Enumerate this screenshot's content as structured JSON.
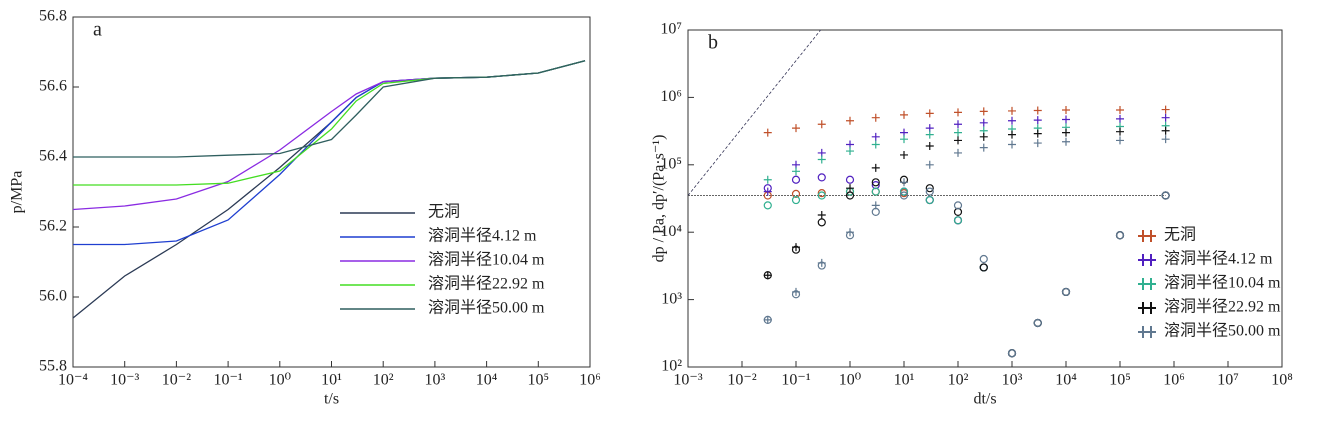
{
  "chart_data": [
    {
      "type": "line",
      "label": "a",
      "xlabel": "t/s",
      "ylabel": "p/MPa",
      "xscale": "linear-log",
      "x": [
        0.0001,
        0.001,
        0.01,
        0.1,
        1,
        10,
        30,
        100,
        1000,
        10000,
        100000,
        800000
      ],
      "xlim": [
        0.0001,
        1000000
      ],
      "ylim": [
        55.8,
        56.8
      ],
      "xticks": [
        {
          "value": 0.0001,
          "label": "10⁻⁴"
        },
        {
          "value": 0.001,
          "label": "10⁻³"
        },
        {
          "value": 0.01,
          "label": "10⁻²"
        },
        {
          "value": 0.1,
          "label": "10⁻¹"
        },
        {
          "value": 1,
          "label": "10⁰"
        },
        {
          "value": 10,
          "label": "10¹"
        },
        {
          "value": 100,
          "label": "10²"
        },
        {
          "value": 1000,
          "label": "10³"
        },
        {
          "value": 10000,
          "label": "10⁴"
        },
        {
          "value": 100000,
          "label": "10⁵"
        },
        {
          "value": 1000000,
          "label": "10⁶"
        }
      ],
      "yticks": [
        55.8,
        {
          "value": 56,
          "label": "56.0"
        },
        56.2,
        56.4,
        56.6,
        56.8
      ],
      "series": [
        {
          "name": "无洞",
          "color": "#2b3a55",
          "values": [
            55.94,
            56.06,
            56.15,
            56.25,
            56.37,
            56.5,
            56.57,
            56.615,
            56.625,
            56.628,
            56.64,
            56.675
          ]
        },
        {
          "name": "溶洞半径4.12 m",
          "color": "#1f3fd0",
          "values": [
            56.15,
            56.15,
            56.16,
            56.22,
            56.35,
            56.5,
            56.57,
            56.615,
            56.625,
            56.628,
            56.64,
            56.675
          ]
        },
        {
          "name": "溶洞半径10.04 m",
          "color": "#8a2be2",
          "values": [
            56.25,
            56.26,
            56.28,
            56.33,
            56.42,
            56.53,
            56.58,
            56.615,
            56.625,
            56.628,
            56.64,
            56.675
          ]
        },
        {
          "name": "溶洞半径22.92 m",
          "color": "#44dd22",
          "values": [
            56.32,
            56.32,
            56.32,
            56.325,
            56.36,
            56.48,
            56.56,
            56.61,
            56.625,
            56.628,
            56.64,
            56.675
          ]
        },
        {
          "name": "溶洞半径50.00 m",
          "color": "#2f5f5f",
          "values": [
            56.4,
            56.4,
            56.4,
            56.405,
            56.41,
            56.45,
            56.52,
            56.6,
            56.625,
            56.628,
            56.64,
            56.675
          ]
        }
      ]
    },
    {
      "type": "scatter",
      "label": "b",
      "xlabel": "dt/s",
      "ylabel": "dp / Pa, dp′/(Pa·s⁻¹)",
      "xscale": "log",
      "yscale": "log",
      "hline": 35000,
      "x": [
        0.03,
        0.1,
        0.3,
        1,
        3,
        10,
        30,
        100,
        300,
        1000,
        3000,
        10000,
        100000,
        700000
      ],
      "xlim": [
        0.001,
        100000000
      ],
      "ylim": [
        100,
        10000000
      ],
      "xticks": [
        {
          "value": 0.001,
          "label": "10⁻³"
        },
        {
          "value": 0.01,
          "label": "10⁻²"
        },
        {
          "value": 0.1,
          "label": "10⁻¹"
        },
        {
          "value": 1,
          "label": "10⁰"
        },
        {
          "value": 10,
          "label": "10¹"
        },
        {
          "value": 100,
          "label": "10²"
        },
        {
          "value": 1000,
          "label": "10³"
        },
        {
          "value": 10000,
          "label": "10⁴"
        },
        {
          "value": 100000,
          "label": "10⁵"
        },
        {
          "value": 1000000,
          "label": "10⁶"
        },
        {
          "value": 10000000,
          "label": "10⁷"
        },
        {
          "value": 100000000,
          "label": "10⁸"
        }
      ],
      "yticks": [
        {
          "value": 100,
          "label": "10²"
        },
        {
          "value": 1000,
          "label": "10³"
        },
        {
          "value": 10000,
          "label": "10⁴"
        },
        {
          "value": 100000,
          "label": "10⁵"
        },
        {
          "value": 1000000,
          "label": "10⁶"
        },
        {
          "value": 10000000,
          "label": "10⁷"
        }
      ],
      "series": [
        {
          "name": "无洞",
          "color": "#c0502a",
          "values": [
            300000,
            350000,
            400000,
            450000,
            500000,
            550000,
            580000,
            600000,
            620000,
            630000,
            640000,
            650000,
            650000,
            660000
          ],
          "derivative": [
            35000,
            37000,
            38000,
            40000,
            40000,
            38000,
            30000,
            15000,
            3000,
            160,
            450,
            1300,
            9000,
            35000
          ]
        },
        {
          "name": "溶洞半径4.12 m",
          "color": "#5020c0",
          "values": [
            40000,
            100000,
            150000,
            200000,
            260000,
            300000,
            350000,
            400000,
            420000,
            450000,
            460000,
            470000,
            480000,
            500000
          ],
          "derivative": [
            45000,
            60000,
            65000,
            60000,
            50000,
            40000,
            30000,
            15000,
            3000,
            160,
            450,
            1300,
            9000,
            35000
          ]
        },
        {
          "name": "溶洞半径10.04 m",
          "color": "#30b090",
          "values": [
            60000,
            80000,
            120000,
            160000,
            200000,
            240000,
            280000,
            300000,
            320000,
            340000,
            350000,
            360000,
            370000,
            380000
          ],
          "derivative": [
            25000,
            30000,
            35000,
            40000,
            40000,
            40000,
            30000,
            15000,
            3000,
            160,
            450,
            1300,
            9000,
            35000
          ]
        },
        {
          "name": "溶洞半径22.92 m",
          "color": "#111111",
          "values": [
            2300,
            6000,
            18000,
            45000,
            90000,
            140000,
            190000,
            230000,
            260000,
            280000,
            290000,
            300000,
            310000,
            320000
          ],
          "derivative": [
            2300,
            5500,
            14000,
            35000,
            55000,
            60000,
            45000,
            20000,
            3000,
            160,
            450,
            1300,
            9000,
            35000
          ]
        },
        {
          "name": "溶洞半径50.00 m",
          "color": "#607890",
          "values": [
            500,
            1300,
            3500,
            10000,
            25000,
            55000,
            100000,
            150000,
            180000,
            200000,
            210000,
            220000,
            230000,
            240000
          ],
          "derivative": [
            500,
            1200,
            3200,
            9000,
            20000,
            35000,
            40000,
            25000,
            4000,
            160,
            450,
            1300,
            9000,
            35000
          ]
        }
      ]
    }
  ]
}
